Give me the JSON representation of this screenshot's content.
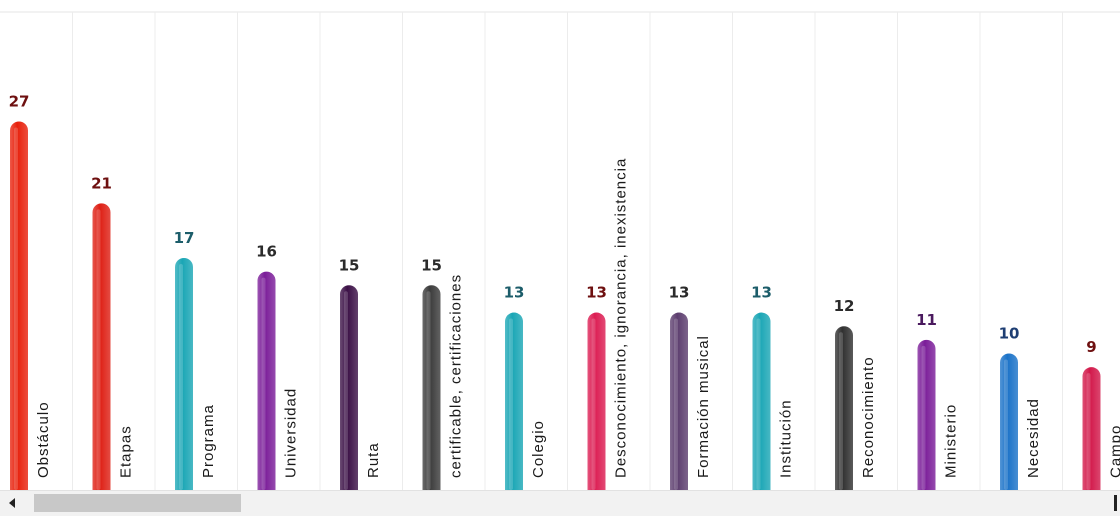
{
  "chart_data": {
    "type": "bar",
    "categories": [
      "Obstáculo",
      "Etapas",
      "Programa",
      "Universidad",
      "Ruta",
      "certificable, certificaciones",
      "Colegio",
      "Desconocimiento, ignorancia, inexistencia",
      "Formación musical",
      "Institución",
      "Reconocimiento",
      "Ministerio",
      "Necesidad",
      "Campo"
    ],
    "values": [
      27,
      21,
      17,
      16,
      15,
      15,
      13,
      13,
      13,
      13,
      12,
      11,
      10,
      9
    ],
    "bar_colors": [
      "#e8210c",
      "#de1f14",
      "#1aa6b5",
      "#7b1d99",
      "#3b1046",
      "#3b3b3b",
      "#1aa6b5",
      "#dc1c52",
      "#5c3d6e",
      "#1aa6b5",
      "#303030",
      "#7b1d99",
      "#1a72c8",
      "#d2184a"
    ],
    "label_colors": [
      "#6e1010",
      "#6e1010",
      "#1c5d6a",
      "#2b2b2b",
      "#2b2b2b",
      "#2b2b2b",
      "#1c5d6a",
      "#6e1010",
      "#2b2b2b",
      "#1c5d6a",
      "#2b2b2b",
      "#4a1a5e",
      "#1e3e73",
      "#6e1010"
    ],
    "ylim": [
      0,
      27
    ],
    "grid": true,
    "orientation": "vertical",
    "category_label_orientation": "rotated-90"
  },
  "scrollbar": {
    "left_arrow_icon": "triangle-left-icon",
    "right_arrow_icon": "scroll-right-icon"
  }
}
